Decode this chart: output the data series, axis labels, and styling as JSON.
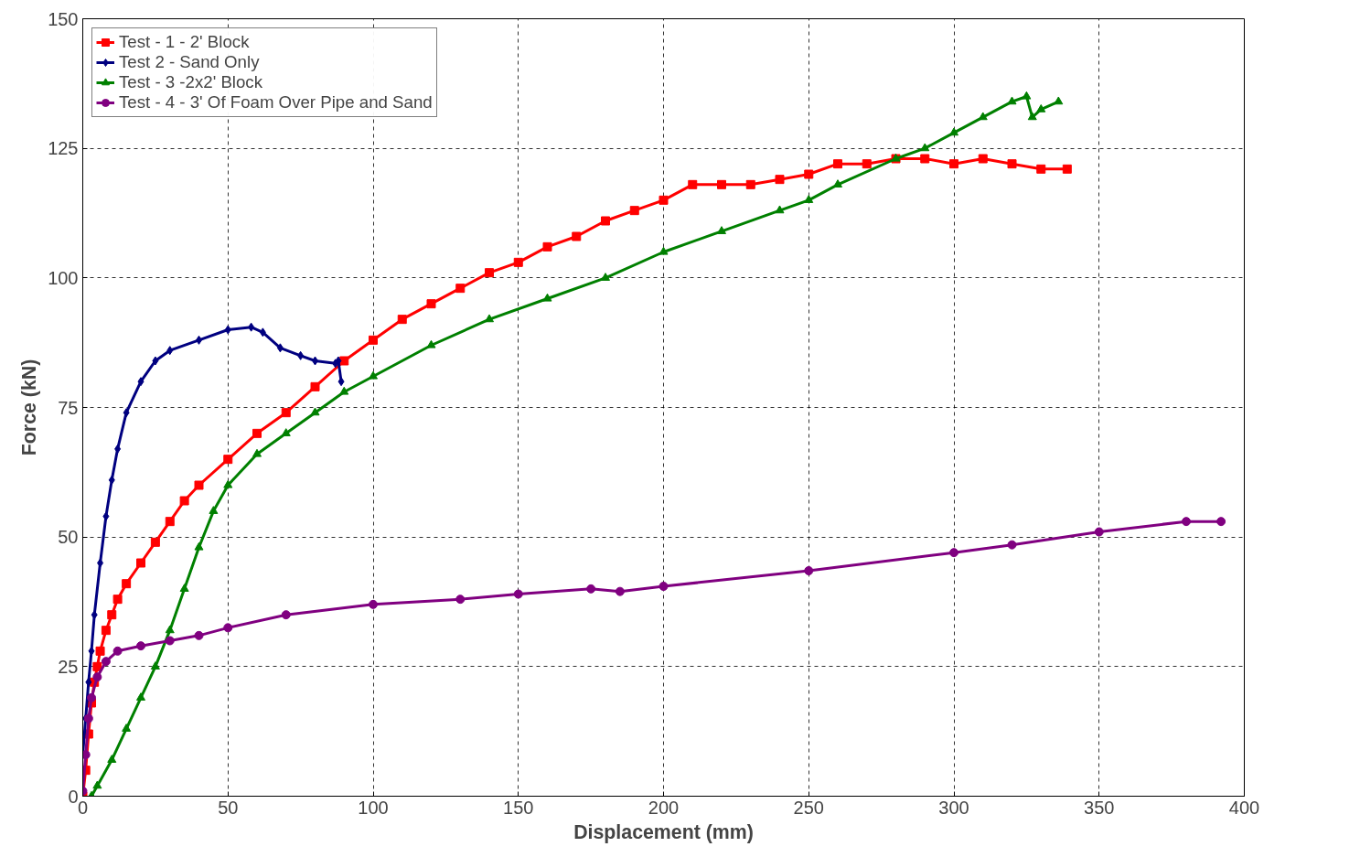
{
  "chart_data": {
    "type": "line",
    "xlabel": "Displacement (mm)",
    "ylabel": "Force (kN)",
    "xlim": [
      0,
      400
    ],
    "xticks": [
      0,
      50,
      100,
      150,
      200,
      250,
      300,
      350,
      400
    ],
    "ylim": [
      0,
      150
    ],
    "yticks": [
      0,
      25,
      50,
      75,
      100,
      125,
      150
    ],
    "grid": true,
    "legend": "top left",
    "line_style": "solid",
    "series": [
      {
        "name": "Test - 1 - 2' Block",
        "color": "#ff0000",
        "marker": "square",
        "x": [
          0,
          1,
          2,
          3,
          4,
          5,
          6,
          8,
          10,
          12,
          15,
          20,
          25,
          30,
          35,
          40,
          50,
          60,
          70,
          80,
          90,
          100,
          110,
          120,
          130,
          140,
          150,
          160,
          170,
          180,
          190,
          200,
          210,
          220,
          230,
          240,
          250,
          260,
          270,
          280,
          290,
          300,
          310,
          320,
          330,
          339
        ],
        "values": [
          0,
          5,
          12,
          18,
          22,
          25,
          28,
          32,
          35,
          38,
          41,
          45,
          49,
          53,
          57,
          60,
          65,
          70,
          74,
          79,
          84,
          88,
          92,
          95,
          98,
          101,
          103,
          106,
          108,
          111,
          113,
          115,
          118,
          118,
          118,
          119,
          120,
          122,
          122,
          123,
          123,
          122,
          123,
          122,
          121,
          121
        ]
      },
      {
        "name": "Test 2 - Sand Only",
        "color": "#000080",
        "marker": "diamond",
        "x": [
          0,
          1,
          2,
          3,
          4,
          6,
          8,
          10,
          12,
          15,
          20,
          25,
          30,
          40,
          50,
          58,
          62,
          68,
          75,
          80,
          87,
          88,
          89
        ],
        "values": [
          8,
          15,
          22,
          28,
          35,
          45,
          54,
          61,
          67,
          74,
          80,
          84,
          86,
          88,
          90,
          90.5,
          89.5,
          86.5,
          85,
          84,
          83.5,
          84,
          80
        ]
      },
      {
        "name": "Test - 3 -2x2' Block",
        "color": "#008000",
        "marker": "triangle",
        "x": [
          3,
          5,
          10,
          15,
          20,
          25,
          30,
          35,
          40,
          45,
          50,
          60,
          70,
          80,
          90,
          100,
          120,
          140,
          160,
          180,
          200,
          220,
          240,
          250,
          260,
          280,
          290,
          300,
          310,
          320,
          325,
          327,
          330,
          336
        ],
        "values": [
          0,
          2,
          7,
          13,
          19,
          25,
          32,
          40,
          48,
          55,
          60,
          66,
          70,
          74,
          78,
          81,
          87,
          92,
          96,
          100,
          105,
          109,
          113,
          115,
          118,
          123,
          125,
          128,
          131,
          134,
          135,
          131,
          132.5,
          134
        ]
      },
      {
        "name": "Test - 4 - 3' Of Foam Over Pipe and Sand",
        "color": "#800080",
        "marker": "circle",
        "x": [
          0,
          1,
          2,
          3,
          5,
          8,
          12,
          20,
          30,
          40,
          50,
          70,
          100,
          130,
          150,
          175,
          185,
          200,
          250,
          300,
          320,
          350,
          380,
          392
        ],
        "values": [
          1,
          8,
          15,
          19,
          23,
          26,
          28,
          29,
          30,
          31,
          32.5,
          35,
          37,
          38,
          39,
          40,
          39.5,
          40.5,
          43.5,
          47,
          48.5,
          51,
          53,
          53
        ]
      }
    ]
  }
}
